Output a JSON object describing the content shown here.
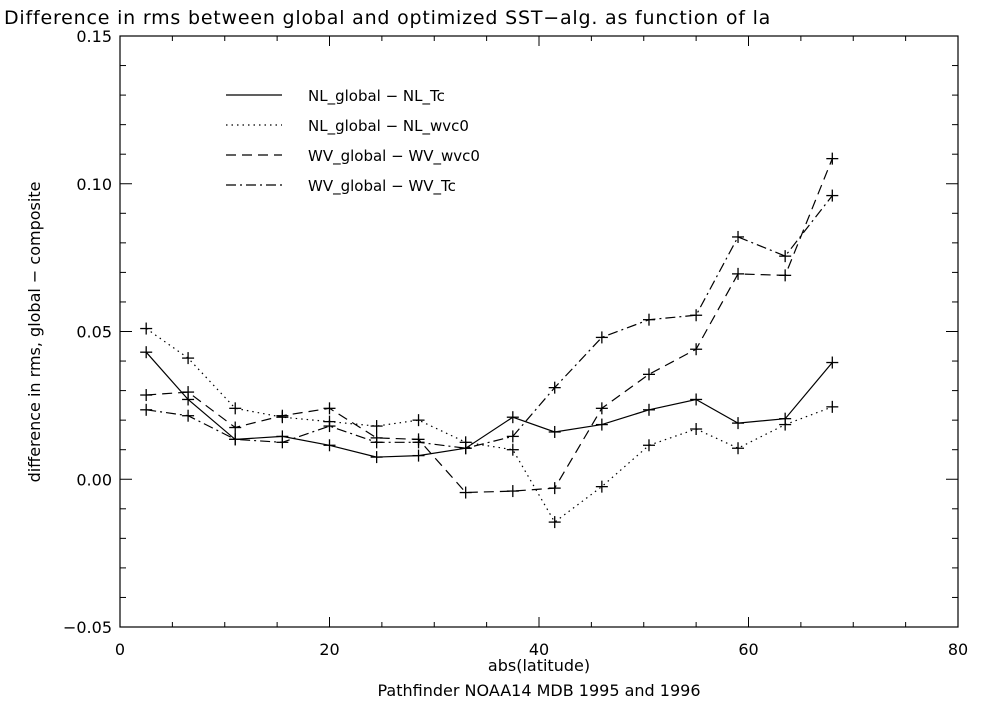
{
  "chart_data": {
    "type": "line",
    "title": "Difference in rms between global and optimized SST−alg. as function of la",
    "xlabel": "abs(latitude)",
    "subtitle": "Pathfinder NOAA14 MDB 1995 and 1996",
    "ylabel": "difference in rms, global − composite",
    "xlim": [
      0,
      80
    ],
    "ylim": [
      -0.05,
      0.15
    ],
    "x_ticks": [
      "0",
      "20",
      "40",
      "60",
      "80"
    ],
    "y_ticks": [
      "−0.05",
      "0.00",
      "0.05",
      "0.10",
      "0.15"
    ],
    "x_tick_values": [
      0,
      20,
      40,
      60,
      80
    ],
    "y_tick_values": [
      -0.05,
      0.0,
      0.05,
      0.1,
      0.15
    ],
    "grid": false,
    "legend_position": "top-left",
    "marker": "plus",
    "x": [
      2.5,
      6.5,
      11,
      15.5,
      20,
      24.5,
      28.5,
      33,
      37.5,
      41.5,
      46,
      50.5,
      55,
      59,
      63.5,
      68
    ],
    "series": [
      {
        "name": "NL_global − NL_Tc",
        "dash": "solid",
        "values": [
          0.043,
          0.027,
          0.0135,
          0.0145,
          0.0115,
          0.0075,
          0.008,
          0.0105,
          0.021,
          0.016,
          0.0185,
          0.0235,
          0.027,
          0.019,
          0.0205,
          0.0395
        ]
      },
      {
        "name": "NL_global − NL_wvc0",
        "dash": "dotted",
        "values": [
          0.051,
          0.041,
          0.024,
          0.021,
          0.0195,
          0.018,
          0.02,
          0.0125,
          0.01,
          -0.0145,
          -0.0025,
          0.0115,
          0.017,
          0.0105,
          0.0185,
          0.0245
        ]
      },
      {
        "name": "WV_global − WV_wvc0",
        "dash": "dashed",
        "values": [
          0.0285,
          0.0295,
          0.0175,
          0.0215,
          0.024,
          0.014,
          0.0135,
          -0.0045,
          -0.004,
          -0.003,
          0.024,
          0.0355,
          0.044,
          0.0695,
          0.069,
          0.1085
        ]
      },
      {
        "name": "WV_global − WV_Tc",
        "dash": "dashdot",
        "values": [
          0.0235,
          0.0215,
          0.0135,
          0.0125,
          0.018,
          0.0125,
          0.0125,
          0.0105,
          0.0145,
          0.031,
          0.048,
          0.054,
          0.0555,
          0.082,
          0.0755,
          0.096
        ]
      }
    ]
  }
}
